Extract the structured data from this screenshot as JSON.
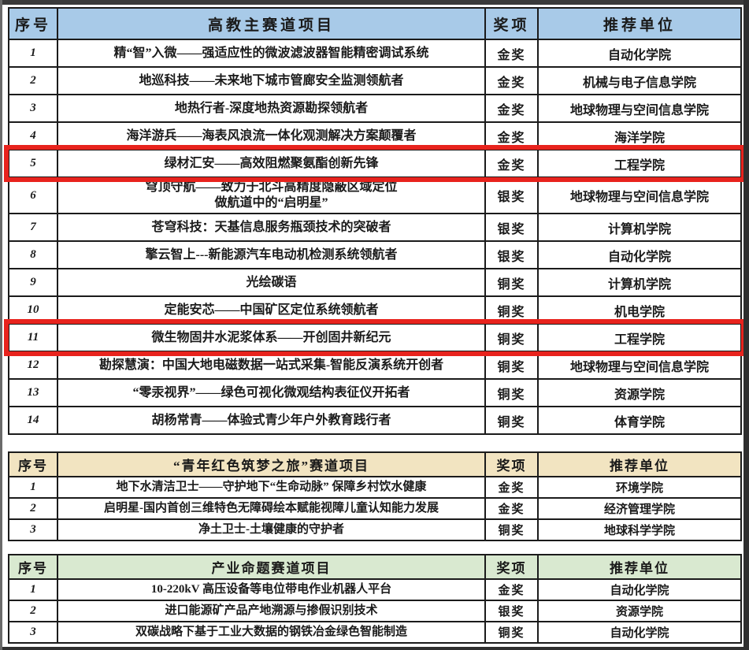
{
  "highlight_color": "#e8231d",
  "border_color": "#1b1b1b",
  "sections": [
    {
      "id": "main-track",
      "header_bg": "#a8cae8",
      "columns": {
        "no": "序号",
        "title": "高教主赛道项目",
        "award": "奖项",
        "unit": "推荐单位"
      },
      "rows": [
        {
          "no": "1",
          "project": "精“智”入微——强适应性的微波滤波器智能精密调试系统",
          "award": "金奖",
          "unit": "自动化学院",
          "highlighted": false
        },
        {
          "no": "2",
          "project": "地巡科技——未来地下城市管廊安全监测领航者",
          "award": "金奖",
          "unit": "机械与电子信息学院",
          "highlighted": false
        },
        {
          "no": "3",
          "project": "地热行者-深度地热资源勘探领航者",
          "award": "金奖",
          "unit": "地球物理与空间信息学院",
          "highlighted": false
        },
        {
          "no": "4",
          "project": "海洋游兵——海表风浪流一体化观测解决方案颠覆者",
          "award": "金奖",
          "unit": "海洋学院",
          "highlighted": false
        },
        {
          "no": "5",
          "project": "绿材汇安——高效阻燃聚氨酯创新先锋",
          "award": "金奖",
          "unit": "工程学院",
          "highlighted": true
        },
        {
          "no": "6",
          "project": "穹顶守航——致力于北斗高精度隐蔽区域定位\n做航道中的“启明星”",
          "award": "银奖",
          "unit": "地球物理与空间信息学院",
          "highlighted": false
        },
        {
          "no": "7",
          "project": "苍穹科技：天基信息服务瓶颈技术的突破者",
          "award": "银奖",
          "unit": "计算机学院",
          "highlighted": false
        },
        {
          "no": "8",
          "project": "擎云智上---新能源汽车电动机检测系统领航者",
          "award": "银奖",
          "unit": "自动化学院",
          "highlighted": false
        },
        {
          "no": "9",
          "project": "光绘碳语",
          "award": "铜奖",
          "unit": "计算机学院",
          "highlighted": false
        },
        {
          "no": "10",
          "project": "定能安芯——中国矿区定位系统领航者",
          "award": "铜奖",
          "unit": "机电学院",
          "highlighted": false
        },
        {
          "no": "11",
          "project": "微生物固井水泥浆体系——开创固井新纪元",
          "award": "铜奖",
          "unit": "工程学院",
          "highlighted": true
        },
        {
          "no": "12",
          "project": "勘探慧演：中国大地电磁数据一站式采集-智能反演系统开创者",
          "award": "铜奖",
          "unit": "地球物理与空间信息学院",
          "highlighted": false
        },
        {
          "no": "13",
          "project": "“零汞视界”——绿色可视化微观结构表征仪开拓者",
          "award": "铜奖",
          "unit": "资源学院",
          "highlighted": false
        },
        {
          "no": "14",
          "project": "胡杨常青——体验式青少年户外教育践行者",
          "award": "铜奖",
          "unit": "体育学院",
          "highlighted": false
        }
      ]
    },
    {
      "id": "red-dream-track",
      "header_bg": "#f2e4c1",
      "columns": {
        "no": "序号",
        "title": "“青年红色筑梦之旅”赛道项目",
        "award": "奖项",
        "unit": "推荐单位"
      },
      "rows": [
        {
          "no": "1",
          "project": "地下水清洁卫士——守护地下“生命动脉” 保障乡村饮水健康",
          "award": "金奖",
          "unit": "环境学院",
          "highlighted": false
        },
        {
          "no": "2",
          "project": "启明星-国内首创三维特色无障碍绘本赋能视障儿童认知能力发展",
          "award": "金奖",
          "unit": "经济管理学院",
          "highlighted": false
        },
        {
          "no": "3",
          "project": "净土卫士-土壤健康的守护者",
          "award": "铜奖",
          "unit": "地球科学学院",
          "highlighted": false
        }
      ]
    },
    {
      "id": "industry-track",
      "header_bg": "#d9e9d0",
      "columns": {
        "no": "序号",
        "title": "产业命题赛道项目",
        "award": "奖项",
        "unit": "推荐单位"
      },
      "rows": [
        {
          "no": "1",
          "project": "10-220kV 高压设备等电位带电作业机器人平台",
          "award": "金奖",
          "unit": "自动化学院",
          "highlighted": false
        },
        {
          "no": "2",
          "project": "进口能源矿产品产地溯源与掺假识别技术",
          "award": "银奖",
          "unit": "资源学院",
          "highlighted": false
        },
        {
          "no": "3",
          "project": "双碳战略下基于工业大数据的钢铁冶金绿色智能制造",
          "award": "铜奖",
          "unit": "自动化学院",
          "highlighted": false
        }
      ]
    }
  ]
}
